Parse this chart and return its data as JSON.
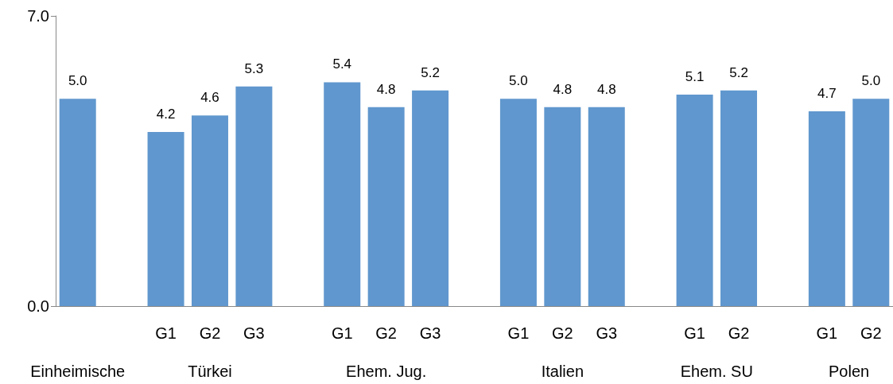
{
  "chart_data": {
    "type": "bar",
    "categories": [
      null,
      null,
      "G1",
      "G2",
      "G3",
      null,
      "G1",
      "G2",
      "G3",
      null,
      "G1",
      "G2",
      "G3",
      null,
      "G1",
      "G2",
      null,
      "G1",
      "G2"
    ],
    "values": [
      5.0,
      null,
      4.2,
      4.6,
      5.3,
      null,
      5.4,
      4.8,
      5.2,
      null,
      5.0,
      4.8,
      4.8,
      null,
      5.1,
      5.2,
      null,
      4.7,
      5.0
    ],
    "value_labels": [
      "5.0",
      null,
      "4.2",
      "4.6",
      "5.3",
      null,
      "5.4",
      "4.8",
      "5.2",
      null,
      "5.0",
      "4.8",
      "4.8",
      null,
      "5.1",
      "5.2",
      null,
      "4.7",
      "5.0"
    ],
    "color": "#6097ce",
    "ylim": [
      0,
      7
    ],
    "yticks": [
      {
        "value": 0,
        "label": "0.0"
      },
      {
        "value": 7,
        "label": "7.0"
      }
    ],
    "annotations": [
      "Einheimische",
      "Türkei",
      "Ehem. Jug.",
      "Italien",
      "Ehem. SU",
      "Polen"
    ]
  }
}
